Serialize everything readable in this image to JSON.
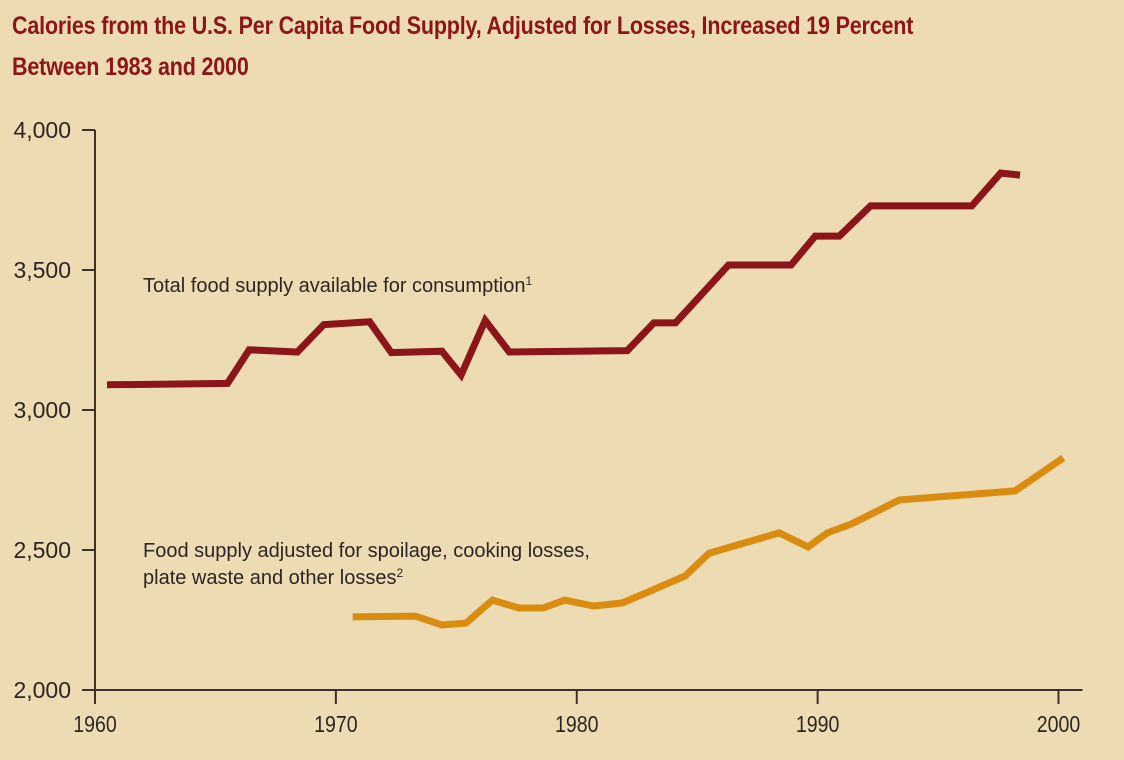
{
  "chart_data": {
    "type": "line",
    "title": "Calories from the U.S. Per Capita Food Supply, Adjusted for Losses, Increased 19 Percent Between 1983 and 2000",
    "title_lines": [
      "Calories from the U.S. Per Capita Food Supply, Adjusted for Losses, Increased 19 Percent",
      "Between 1983 and 2000"
    ],
    "xlabel": "",
    "ylabel": "",
    "xlim": [
      1960,
      2001
    ],
    "ylim": [
      2000,
      4000
    ],
    "x_ticks": [
      1960,
      1970,
      1980,
      1990,
      2000
    ],
    "x_tick_labels": [
      "1960",
      "1970",
      "1980",
      "1990",
      "2000"
    ],
    "y_ticks": [
      2000,
      2500,
      3000,
      3500,
      4000
    ],
    "y_tick_labels": [
      "2,000",
      "2,500",
      "3,000",
      "3,500",
      "4,000"
    ],
    "grid": false,
    "legend": "none (inline annotations)",
    "series": [
      {
        "name": "Total food supply available for consumption",
        "footnote": "1",
        "label_line1": "Total food supply available for consumption",
        "color": "#8b1519",
        "x": [
          1960.5,
          1965.5,
          1966.4,
          1968.4,
          1969.5,
          1971.4,
          1972.3,
          1974.4,
          1975.2,
          1976.2,
          1977.2,
          1982.1,
          1983.2,
          1984.1,
          1986.3,
          1988.9,
          1989.9,
          1990.9,
          1992.2,
          1996.4,
          1997.6,
          1998.4
        ],
        "y": [
          3090,
          3095,
          3215,
          3207,
          3305,
          3315,
          3205,
          3210,
          3125,
          3320,
          3207,
          3212,
          3311,
          3311,
          3518,
          3518,
          3621,
          3621,
          3729,
          3729,
          3846,
          3839
        ]
      },
      {
        "name": "Food supply adjusted for spoilage, cooking losses, plate waste and other losses",
        "footnote": "2",
        "label_line1": "Food supply adjusted for spoilage, cooking losses,",
        "label_line2": "plate waste and other losses",
        "color": "#d98c0f",
        "x": [
          1970.7,
          1973.3,
          1974.4,
          1975.4,
          1976.5,
          1977.6,
          1978.6,
          1979.5,
          1980.7,
          1981.9,
          1984.5,
          1985.5,
          1988.4,
          1989.6,
          1990.4,
          1991.4,
          1993.4,
          1998.2,
          2000.2
        ],
        "y": [
          2261,
          2264,
          2232,
          2239,
          2321,
          2293,
          2293,
          2321,
          2300,
          2311,
          2407,
          2489,
          2561,
          2511,
          2561,
          2593,
          2679,
          2711,
          2829
        ]
      }
    ]
  }
}
